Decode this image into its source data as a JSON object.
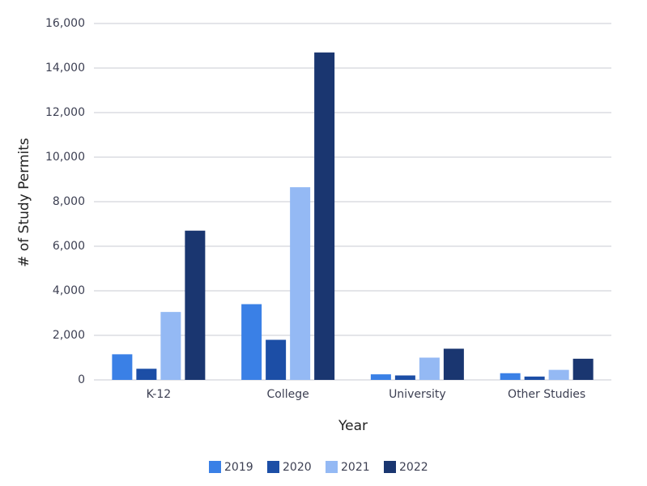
{
  "chart_data": {
    "type": "bar",
    "x_label": "Year",
    "y_label": "# of Study Permits",
    "categories": [
      "K-12",
      "College",
      "University",
      "Other Studies"
    ],
    "series": [
      {
        "name": "2019",
        "color": "#3a80e6",
        "values": [
          1150,
          3400,
          250,
          300
        ]
      },
      {
        "name": "2020",
        "color": "#1c4ea6",
        "values": [
          500,
          1800,
          200,
          150
        ]
      },
      {
        "name": "2021",
        "color": "#94b9f4",
        "values": [
          3050,
          8650,
          1000,
          450
        ]
      },
      {
        "name": "2022",
        "color": "#1a3670",
        "values": [
          6700,
          14700,
          1400,
          950
        ]
      }
    ],
    "ylim": [
      0,
      16000
    ],
    "yticks": [
      0,
      {
        "value": 2000,
        "label": "2,000"
      },
      {
        "value": 4000,
        "label": "4,000"
      },
      {
        "value": 6000,
        "label": "6,000"
      },
      {
        "value": 8000,
        "label": "8,000"
      },
      {
        "value": 10000,
        "label": "10,000"
      },
      {
        "value": 12000,
        "label": "12,000"
      },
      {
        "value": 14000,
        "label": "14,000"
      },
      {
        "value": 16000,
        "label": "16,000"
      }
    ],
    "grid": true,
    "legend": "bottom"
  }
}
